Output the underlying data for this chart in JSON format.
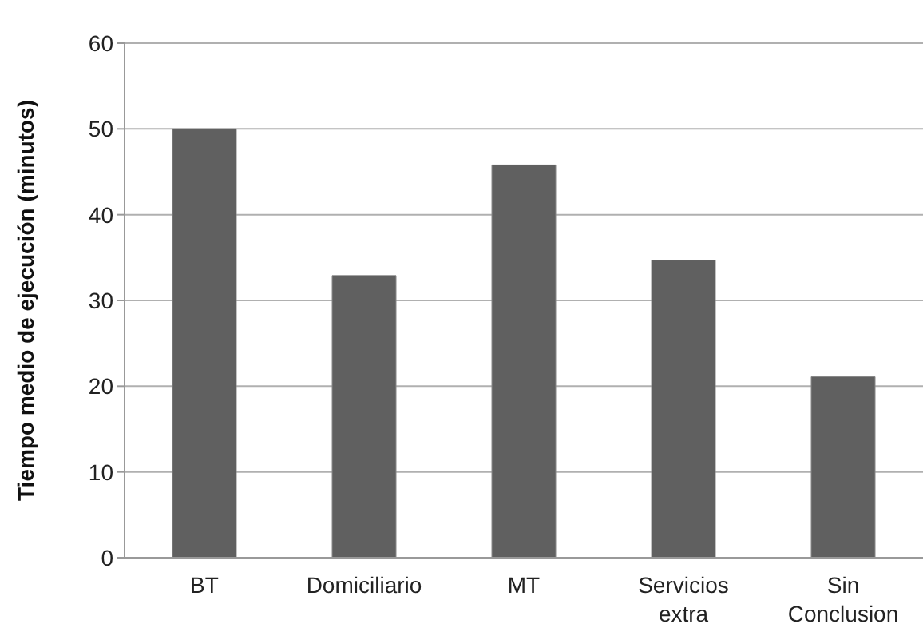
{
  "chart_data": {
    "type": "bar",
    "ylabel": "Tiempo medio de ejecución (minutos)",
    "categories": [
      "BT",
      "Domiciliario",
      "MT",
      "Servicios extra",
      "Sin Conclusion"
    ],
    "values": [
      50,
      32.9,
      45.8,
      34.7,
      21.1
    ],
    "color": "#606060",
    "ylim": [
      0,
      60
    ],
    "yticks": [
      0,
      10,
      20,
      30,
      40,
      50,
      60
    ],
    "grid": "y"
  }
}
